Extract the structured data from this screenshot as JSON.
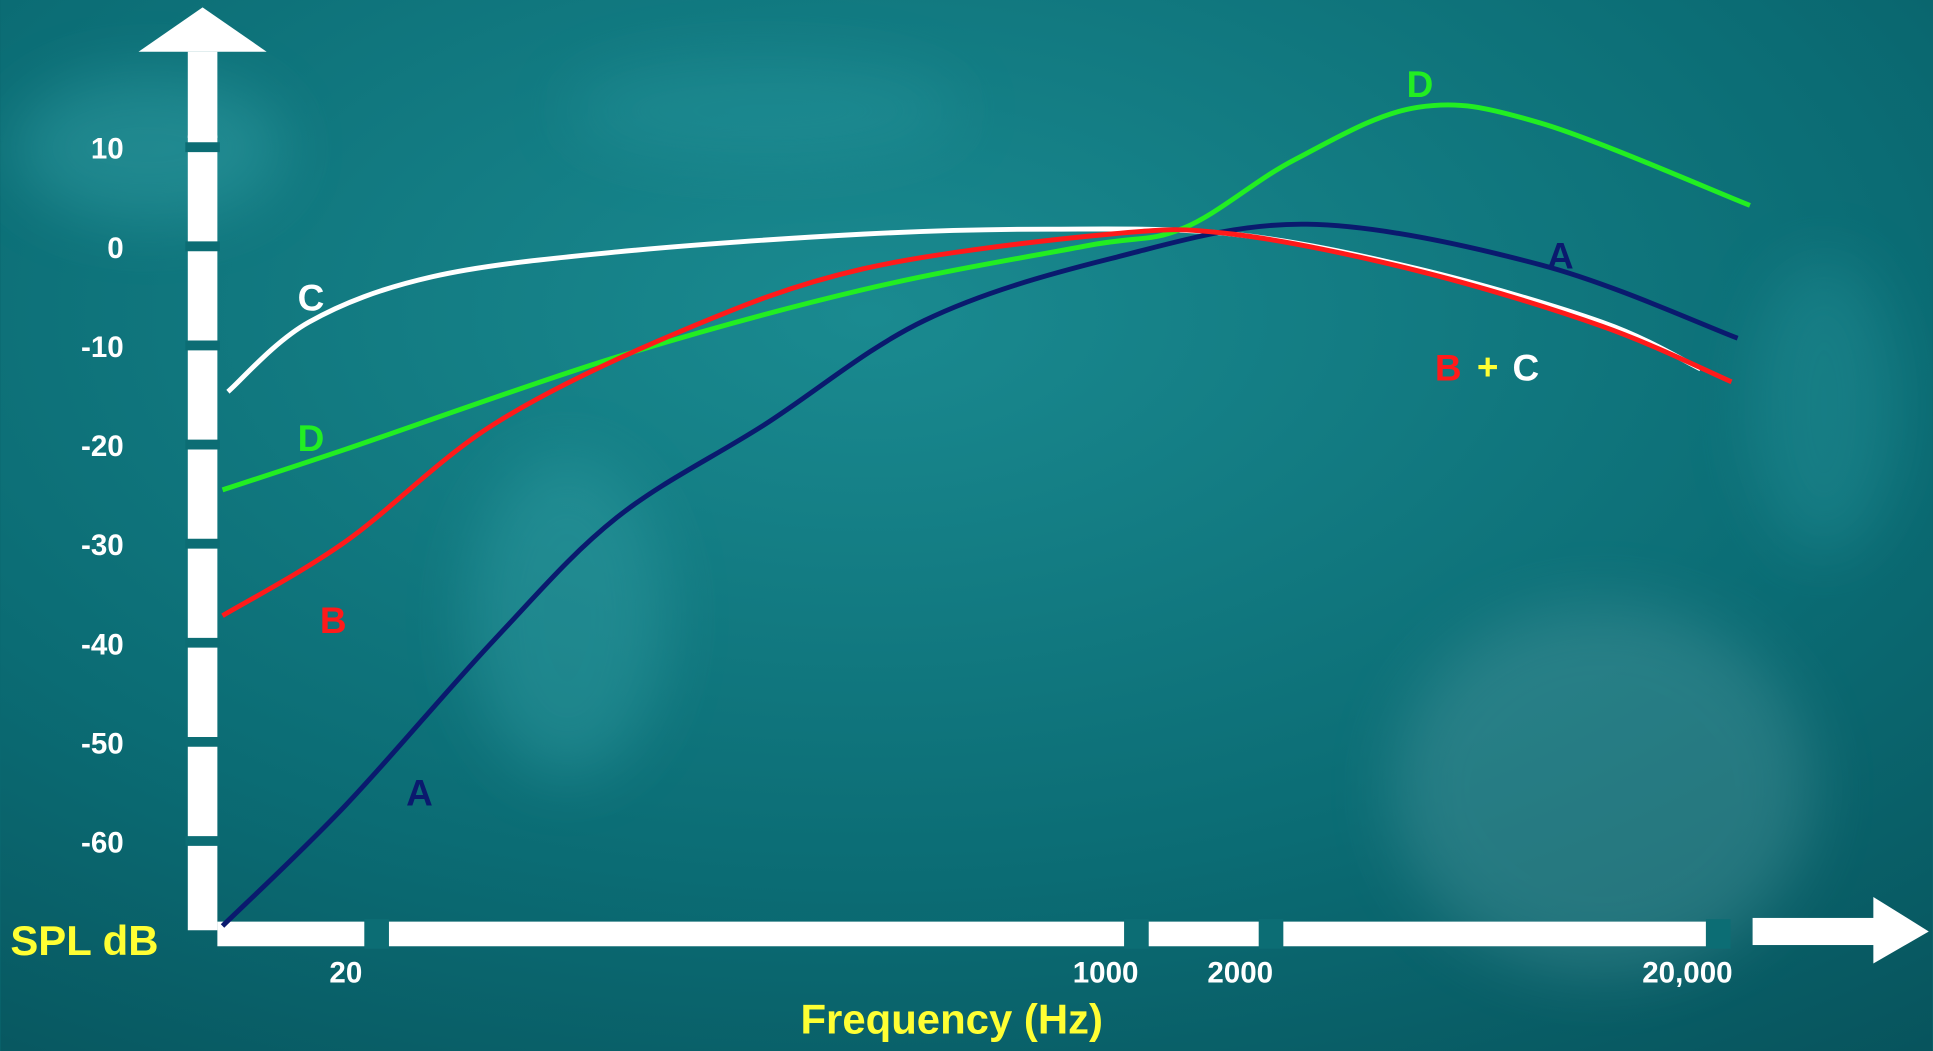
{
  "chart_data": {
    "type": "line",
    "x_label": "Frequency (Hz)",
    "y_label": "SPL dB",
    "x_log": true,
    "xlim": [
      10,
      30000
    ],
    "ylim": [
      -70,
      20
    ],
    "xticks": [
      20,
      1000,
      2000,
      {
        "value": 20000,
        "label": "20,000"
      }
    ],
    "yticks": [
      10,
      0,
      -10,
      -20,
      -30,
      -40,
      -50,
      -60
    ],
    "annotations": [
      "+"
    ],
    "series": [
      {
        "name": "A",
        "color": "#0a1a6e",
        "x": [
          10.6,
          20,
          42.8,
          80.7,
          173,
          394,
          1021,
          2818,
          9400,
          25900
        ],
        "values": [
          -68.2,
          -56,
          -39.4,
          -27,
          -17.6,
          -7.1,
          -0.9,
          2.6,
          -1.5,
          -8.9
        ]
      },
      {
        "name": "B",
        "color": "#ff1a1a",
        "x": [
          10.6,
          20,
          42.8,
          110.9,
          287,
          1021,
          1925,
          4990,
          12900,
          25100
        ],
        "values": [
          -36.9,
          -29.4,
          -17.6,
          -8.3,
          -1.9,
          1.6,
          1.6,
          -2.1,
          -7.7,
          -13.3
        ]
      },
      {
        "name": "C",
        "color": "#ffffff",
        "x": [
          10.9,
          16.5,
          31.2,
          80.7,
          287,
          743,
          1925,
          4990,
          12900,
          21400
        ],
        "values": [
          -14.3,
          -7.3,
          -2.7,
          -0.2,
          1.6,
          2.1,
          1.6,
          -1.9,
          -7.3,
          -12
        ]
      },
      {
        "name": "D",
        "color": "#22ee22",
        "x": [
          10.6,
          20,
          80.7,
          287,
          900,
          1493,
          2645,
          4990,
          9400,
          27600
        ],
        "values": [
          -24.2,
          -20.1,
          -10.8,
          -4,
          0.4,
          2.2,
          9.1,
          14.4,
          12.8,
          4.5
        ]
      }
    ]
  }
}
